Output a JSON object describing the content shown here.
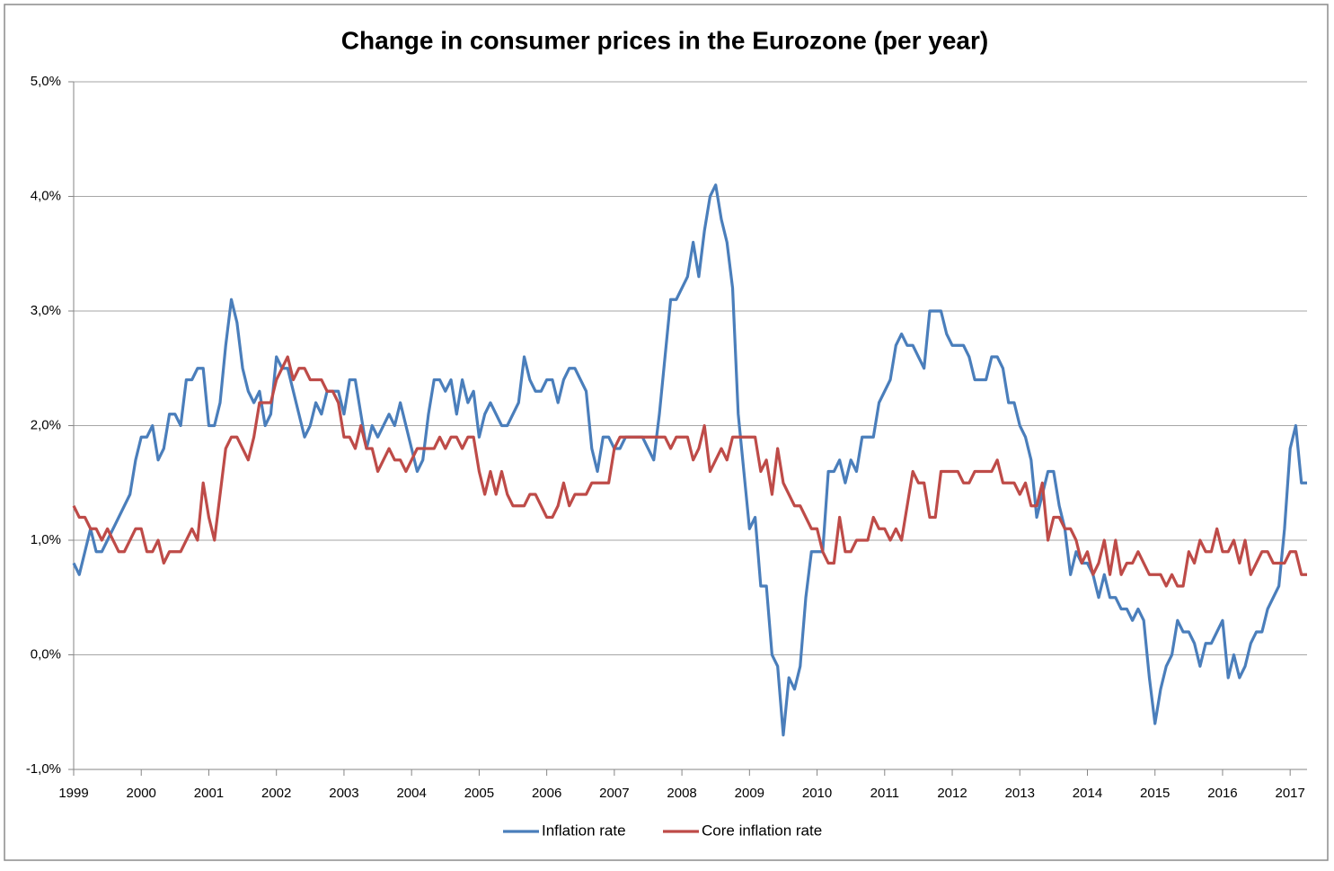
{
  "chart_data": {
    "type": "line",
    "title": "Change in consumer prices in the Eurozone (per year)",
    "categories": [
      "1999",
      null,
      null,
      null,
      null,
      null,
      null,
      null,
      null,
      null,
      null,
      null,
      "2000",
      null,
      null,
      null,
      null,
      null,
      null,
      null,
      null,
      null,
      null,
      null,
      "2001",
      null,
      null,
      null,
      null,
      null,
      null,
      null,
      null,
      null,
      null,
      null,
      "2002",
      null,
      null,
      null,
      null,
      null,
      null,
      null,
      null,
      null,
      null,
      null,
      "2003",
      null,
      null,
      null,
      null,
      null,
      null,
      null,
      null,
      null,
      null,
      null,
      "2004",
      null,
      null,
      null,
      null,
      null,
      null,
      null,
      null,
      null,
      null,
      null,
      "2005",
      null,
      null,
      null,
      null,
      null,
      null,
      null,
      null,
      null,
      null,
      null,
      "2006",
      null,
      null,
      null,
      null,
      null,
      null,
      null,
      null,
      null,
      null,
      null,
      "2007",
      null,
      null,
      null,
      null,
      null,
      null,
      null,
      null,
      null,
      null,
      null,
      "2008",
      null,
      null,
      null,
      null,
      null,
      null,
      null,
      null,
      null,
      null,
      null,
      "2009",
      null,
      null,
      null,
      null,
      null,
      null,
      null,
      null,
      null,
      null,
      null,
      "2010",
      null,
      null,
      null,
      null,
      null,
      null,
      null,
      null,
      null,
      null,
      null,
      "2011",
      null,
      null,
      null,
      null,
      null,
      null,
      null,
      null,
      null,
      null,
      null,
      "2012",
      null,
      null,
      null,
      null,
      null,
      null,
      null,
      null,
      null,
      null,
      null,
      "2013",
      null,
      null,
      null,
      null,
      null,
      null,
      null,
      null,
      null,
      null,
      null,
      "2014",
      null,
      null,
      null,
      null,
      null,
      null,
      null,
      null,
      null,
      null,
      null,
      "2015",
      null,
      null,
      null,
      null,
      null,
      null,
      null,
      null,
      null,
      null,
      null,
      "2016",
      null,
      null,
      null,
      null,
      null,
      null,
      null,
      null,
      null,
      null,
      null,
      "2017",
      null,
      null,
      null
    ],
    "series": [
      {
        "name": "Inflation rate",
        "color": "#4a7ebb",
        "values": [
          0.8,
          0.7,
          0.9,
          1.1,
          0.9,
          0.9,
          1.0,
          1.1,
          1.2,
          1.3,
          1.4,
          1.7,
          1.9,
          1.9,
          2.0,
          1.7,
          1.8,
          2.1,
          2.1,
          2.0,
          2.4,
          2.4,
          2.5,
          2.5,
          2.0,
          2.0,
          2.2,
          2.7,
          3.1,
          2.9,
          2.5,
          2.3,
          2.2,
          2.3,
          2.0,
          2.1,
          2.6,
          2.5,
          2.5,
          2.3,
          2.1,
          1.9,
          2.0,
          2.2,
          2.1,
          2.3,
          2.3,
          2.3,
          2.1,
          2.4,
          2.4,
          2.1,
          1.8,
          2.0,
          1.9,
          2.0,
          2.1,
          2.0,
          2.2,
          2.0,
          1.8,
          1.6,
          1.7,
          2.1,
          2.4,
          2.4,
          2.3,
          2.4,
          2.1,
          2.4,
          2.2,
          2.3,
          1.9,
          2.1,
          2.2,
          2.1,
          2.0,
          2.0,
          2.1,
          2.2,
          2.6,
          2.4,
          2.3,
          2.3,
          2.4,
          2.4,
          2.2,
          2.4,
          2.5,
          2.5,
          2.4,
          2.3,
          1.8,
          1.6,
          1.9,
          1.9,
          1.8,
          1.8,
          1.9,
          1.9,
          1.9,
          1.9,
          1.8,
          1.7,
          2.1,
          2.6,
          3.1,
          3.1,
          3.2,
          3.3,
          3.6,
          3.3,
          3.7,
          4.0,
          4.1,
          3.8,
          3.6,
          3.2,
          2.1,
          1.6,
          1.1,
          1.2,
          0.6,
          0.6,
          0.0,
          -0.1,
          -0.7,
          -0.2,
          -0.3,
          -0.1,
          0.5,
          0.9,
          0.9,
          0.9,
          1.6,
          1.6,
          1.7,
          1.5,
          1.7,
          1.6,
          1.9,
          1.9,
          1.9,
          2.2,
          2.3,
          2.4,
          2.7,
          2.8,
          2.7,
          2.7,
          2.6,
          2.5,
          3.0,
          3.0,
          3.0,
          2.8,
          2.7,
          2.7,
          2.7,
          2.6,
          2.4,
          2.4,
          2.4,
          2.6,
          2.6,
          2.5,
          2.2,
          2.2,
          2.0,
          1.9,
          1.7,
          1.2,
          1.4,
          1.6,
          1.6,
          1.3,
          1.1,
          0.7,
          0.9,
          0.8,
          0.8,
          0.7,
          0.5,
          0.7,
          0.5,
          0.5,
          0.4,
          0.4,
          0.3,
          0.4,
          0.3,
          -0.2,
          -0.6,
          -0.3,
          -0.1,
          0.0,
          0.3,
          0.2,
          0.2,
          0.1,
          -0.1,
          0.1,
          0.1,
          0.2,
          0.3,
          -0.2,
          0.0,
          -0.2,
          -0.1,
          0.1,
          0.2,
          0.2,
          0.4,
          0.5,
          0.6,
          1.1,
          1.8,
          2.0,
          1.5,
          1.5
        ]
      },
      {
        "name": "Core inflation rate",
        "color": "#be4b48",
        "values": [
          1.3,
          1.2,
          1.2,
          1.1,
          1.1,
          1.0,
          1.1,
          1.0,
          0.9,
          0.9,
          1.0,
          1.1,
          1.1,
          0.9,
          0.9,
          1.0,
          0.8,
          0.9,
          0.9,
          0.9,
          1.0,
          1.1,
          1.0,
          1.5,
          1.2,
          1.0,
          1.4,
          1.8,
          1.9,
          1.9,
          1.8,
          1.7,
          1.9,
          2.2,
          2.2,
          2.2,
          2.4,
          2.5,
          2.6,
          2.4,
          2.5,
          2.5,
          2.4,
          2.4,
          2.4,
          2.3,
          2.3,
          2.2,
          1.9,
          1.9,
          1.8,
          2.0,
          1.8,
          1.8,
          1.6,
          1.7,
          1.8,
          1.7,
          1.7,
          1.6,
          1.7,
          1.8,
          1.8,
          1.8,
          1.8,
          1.9,
          1.8,
          1.9,
          1.9,
          1.8,
          1.9,
          1.9,
          1.6,
          1.4,
          1.6,
          1.4,
          1.6,
          1.4,
          1.3,
          1.3,
          1.3,
          1.4,
          1.4,
          1.3,
          1.2,
          1.2,
          1.3,
          1.5,
          1.3,
          1.4,
          1.4,
          1.4,
          1.5,
          1.5,
          1.5,
          1.5,
          1.8,
          1.9,
          1.9,
          1.9,
          1.9,
          1.9,
          1.9,
          1.9,
          1.9,
          1.9,
          1.8,
          1.9,
          1.9,
          1.9,
          1.7,
          1.8,
          2.0,
          1.6,
          1.7,
          1.8,
          1.7,
          1.9,
          1.9,
          1.9,
          1.9,
          1.9,
          1.6,
          1.7,
          1.4,
          1.8,
          1.5,
          1.4,
          1.3,
          1.3,
          1.2,
          1.1,
          1.1,
          0.9,
          0.8,
          0.8,
          1.2,
          0.9,
          0.9,
          1.0,
          1.0,
          1.0,
          1.2,
          1.1,
          1.1,
          1.0,
          1.1,
          1.0,
          1.3,
          1.6,
          1.5,
          1.5,
          1.2,
          1.2,
          1.6,
          1.6,
          1.6,
          1.6,
          1.5,
          1.5,
          1.6,
          1.6,
          1.6,
          1.6,
          1.7,
          1.5,
          1.5,
          1.5,
          1.4,
          1.5,
          1.3,
          1.3,
          1.5,
          1.0,
          1.2,
          1.2,
          1.1,
          1.1,
          1.0,
          0.8,
          0.9,
          0.7,
          0.8,
          1.0,
          0.7,
          1.0,
          0.7,
          0.8,
          0.8,
          0.9,
          0.8,
          0.7,
          0.7,
          0.7,
          0.6,
          0.7,
          0.6,
          0.6,
          0.9,
          0.8,
          1.0,
          0.9,
          0.9,
          1.1,
          0.9,
          0.9,
          1.0,
          0.8,
          1.0,
          0.7,
          0.8,
          0.9,
          0.9,
          0.8,
          0.8,
          0.8,
          0.9,
          0.9,
          0.7,
          0.7
        ]
      }
    ],
    "ylim": [
      -1,
      5
    ],
    "yticks": [
      {
        "value": -1,
        "label": "-1,0%"
      },
      {
        "value": 0,
        "label": "0,0%"
      },
      {
        "value": 1,
        "label": "1,0%"
      },
      {
        "value": 2,
        "label": "2,0%"
      },
      {
        "value": 3,
        "label": "3,0%"
      },
      {
        "value": 4,
        "label": "4,0%"
      },
      {
        "value": 5,
        "label": "5,0%"
      }
    ],
    "grid": true,
    "legend": "bottom"
  }
}
